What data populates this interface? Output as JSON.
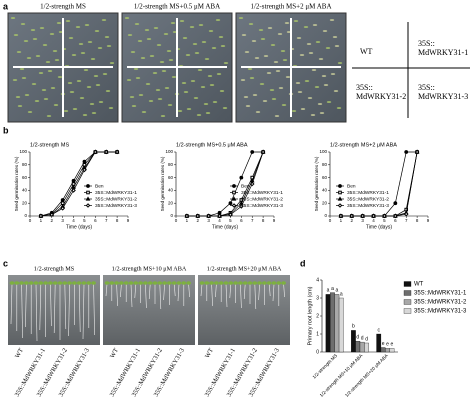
{
  "panels": {
    "a": {
      "label": "a",
      "titles": [
        "1/2-strength MS",
        "1/2-strength MS+0.5 μM ABA",
        "1/2-strength MS+2 μM ABA"
      ],
      "key": [
        [
          "WT"
        ],
        [
          "35S::",
          "MdWRKY31-1"
        ],
        [
          "35S::",
          "MdWRKY31-2"
        ],
        [
          "35S::",
          "MdWRKY31-3"
        ]
      ]
    },
    "b": {
      "label": "b"
    },
    "c": {
      "label": "c",
      "titles": [
        "1/2-strength MS",
        "1/2-strength MS+10 μM ABA",
        "1/2-strength MS+20 μM ABA"
      ],
      "genotypes": [
        [
          "WT",
          "35S::MdWRKY31-1",
          "35S::MdWRKY31-2",
          "35S::MdWRKY31-3"
        ],
        [
          "WT",
          "35S::MdWRKY31-1",
          "35S::MdWRKY31-2",
          "35S::MdWRKY31-3"
        ],
        [
          "WT",
          "35S::MdWRKY31-1",
          "35S::MdWRKY31-2",
          "35S::MdWRKY31-3"
        ]
      ]
    },
    "d": {
      "label": "d"
    }
  },
  "chart_data": [
    {
      "type": "line",
      "title": "1/2-strength MS",
      "xlabel": "Time (days)",
      "ylabel": "Seed germination rates (%)",
      "x": [
        1,
        2,
        3,
        4,
        5,
        6,
        7,
        8
      ],
      "xlim": [
        0,
        9
      ],
      "xticks": [
        0,
        1,
        2,
        3,
        4,
        5,
        6,
        7,
        8,
        9
      ],
      "ylim": [
        0,
        100
      ],
      "yticks": [
        0,
        20,
        40,
        60,
        80,
        100
      ],
      "legend": "lower right",
      "series": [
        {
          "name": "Ben",
          "color": "#000000",
          "marker": "circle",
          "values": [
            0,
            5,
            25,
            55,
            85,
            100,
            100,
            100
          ]
        },
        {
          "name": "35S::MdWRKY31-1",
          "color": "#000000",
          "marker": "square",
          "values": [
            0,
            3,
            20,
            50,
            80,
            100,
            100,
            100
          ]
        },
        {
          "name": "35S::MdWRKY31-2",
          "color": "#000000",
          "marker": "triangle",
          "values": [
            0,
            2,
            15,
            45,
            75,
            100,
            100,
            100
          ]
        },
        {
          "name": "35S::MdWRKY31-3",
          "color": "#000000",
          "marker": "diamond",
          "values": [
            0,
            2,
            12,
            40,
            72,
            100,
            100,
            100
          ]
        }
      ]
    },
    {
      "type": "line",
      "title": "1/2-strength MS+0.5 μM ABA",
      "xlabel": "Time (days)",
      "ylabel": "Seed germination rates (%)",
      "x": [
        1,
        2,
        3,
        4,
        5,
        6,
        7,
        8
      ],
      "xlim": [
        0,
        9
      ],
      "xticks": [
        0,
        1,
        2,
        3,
        4,
        5,
        6,
        7,
        8,
        9
      ],
      "ylim": [
        0,
        100
      ],
      "yticks": [
        0,
        20,
        40,
        60,
        80,
        100
      ],
      "legend": "lower right",
      "series": [
        {
          "name": "Ben",
          "color": "#000000",
          "marker": "circle",
          "values": [
            0,
            0,
            0,
            5,
            20,
            60,
            100,
            100
          ]
        },
        {
          "name": "35S::MdWRKY31-1",
          "color": "#000000",
          "marker": "square",
          "values": [
            0,
            0,
            0,
            0,
            5,
            25,
            60,
            100
          ]
        },
        {
          "name": "35S::MdWRKY31-2",
          "color": "#000000",
          "marker": "triangle",
          "values": [
            0,
            0,
            0,
            0,
            3,
            20,
            55,
            100
          ]
        },
        {
          "name": "35S::MdWRKY31-3",
          "color": "#000000",
          "marker": "diamond",
          "values": [
            0,
            0,
            0,
            0,
            2,
            15,
            50,
            100
          ]
        }
      ]
    },
    {
      "type": "line",
      "title": "1/2-strength MS+2 μM ABA",
      "xlabel": "Time (days)",
      "ylabel": "Seed germination rates (%)",
      "x": [
        1,
        2,
        3,
        4,
        5,
        6,
        7,
        8
      ],
      "xlim": [
        0,
        9
      ],
      "xticks": [
        0,
        1,
        2,
        3,
        4,
        5,
        6,
        7,
        8,
        9
      ],
      "ylim": [
        0,
        100
      ],
      "yticks": [
        0,
        20,
        40,
        60,
        80,
        100
      ],
      "legend": "lower left",
      "series": [
        {
          "name": "Ben",
          "color": "#000000",
          "marker": "circle",
          "values": [
            0,
            0,
            0,
            0,
            0,
            20,
            100,
            100
          ]
        },
        {
          "name": "35S::MdWRKY31-1",
          "color": "#000000",
          "marker": "square",
          "values": [
            0,
            0,
            0,
            0,
            0,
            0,
            10,
            100
          ]
        },
        {
          "name": "35S::MdWRKY31-2",
          "color": "#000000",
          "marker": "triangle",
          "values": [
            0,
            0,
            0,
            0,
            0,
            0,
            5,
            100
          ]
        },
        {
          "name": "35S::MdWRKY31-3",
          "color": "#000000",
          "marker": "diamond",
          "values": [
            0,
            0,
            0,
            0,
            0,
            0,
            3,
            100
          ]
        }
      ]
    },
    {
      "type": "bar",
      "ylabel": "Primary root length (cm)",
      "categories": [
        "1/2-strength MS",
        "1/2-strength MS+10 μM ABA",
        "1/2-strength MS+20 μM ABA"
      ],
      "ylim": [
        0,
        4
      ],
      "yticks": [
        0,
        1,
        2,
        3,
        4
      ],
      "legend": "upper right",
      "series": [
        {
          "name": "WT",
          "color": "#111111",
          "values": [
            3.2,
            1.2,
            1.0
          ],
          "annotations": [
            "a",
            "b",
            "c"
          ]
        },
        {
          "name": "35S::MdWRKY31-1",
          "color": "#6e6e6e",
          "values": [
            3.3,
            0.6,
            0.25
          ],
          "annotations": [
            "a",
            "d",
            "e"
          ]
        },
        {
          "name": "35S::MdWRKY31-2",
          "color": "#a8a8a8",
          "values": [
            3.2,
            0.55,
            0.2
          ],
          "annotations": [
            "a",
            "d",
            "e"
          ]
        },
        {
          "name": "35S::MdWRKY31-3",
          "color": "#d8d8d8",
          "values": [
            3.0,
            0.5,
            0.2
          ],
          "annotations": [
            "a",
            "d",
            "e"
          ]
        }
      ]
    }
  ]
}
